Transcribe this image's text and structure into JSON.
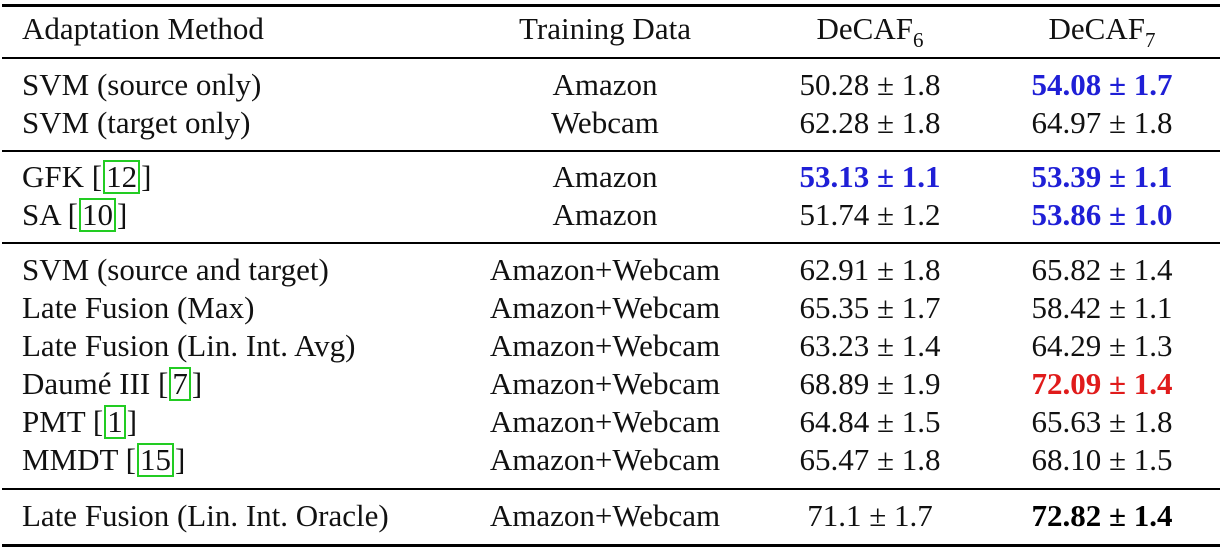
{
  "header": {
    "method": "Adaptation Method",
    "data": "Training Data",
    "decaf6_base": "DeCAF",
    "decaf6_sub": "6",
    "decaf7_base": "DeCAF",
    "decaf7_sub": "7"
  },
  "rows": [
    {
      "method": "SVM (source only)",
      "data": "Amazon",
      "d6": "50.28 ± 1.8",
      "d7": "54.08 ± 1.7"
    },
    {
      "method": "SVM (target only)",
      "data": "Webcam",
      "d6": "62.28 ± 1.8",
      "d7": "64.97 ± 1.8"
    },
    {
      "method": "GFK [",
      "cite": "12",
      "method_end": "]",
      "data": "Amazon",
      "d6": "53.13 ± 1.1",
      "d7": "53.39 ± 1.1"
    },
    {
      "method": "SA [",
      "cite": "10",
      "method_end": "]",
      "data": "Amazon",
      "d6": "51.74 ± 1.2",
      "d7": "53.86 ± 1.0"
    },
    {
      "method": "SVM (source and target)",
      "data": "Amazon+Webcam",
      "d6": "62.91 ± 1.8",
      "d7": "65.82 ± 1.4"
    },
    {
      "method": "Late Fusion (Max)",
      "data": "Amazon+Webcam",
      "d6": "65.35 ± 1.7",
      "d7": "58.42 ± 1.1"
    },
    {
      "method": "Late Fusion (Lin. Int. Avg)",
      "data": "Amazon+Webcam",
      "d6": "63.23 ± 1.4",
      "d7": "64.29 ± 1.3"
    },
    {
      "method": "Daumé III [",
      "cite": "7",
      "method_end": "]",
      "data": "Amazon+Webcam",
      "d6": "68.89 ± 1.9",
      "d7": "72.09 ± 1.4"
    },
    {
      "method": "PMT [",
      "cite": "1",
      "method_end": "]",
      "data": "Amazon+Webcam",
      "d6": "64.84 ± 1.5",
      "d7": "65.63 ± 1.8"
    },
    {
      "method": "MMDT [",
      "cite": "15",
      "method_end": "]",
      "data": "Amazon+Webcam",
      "d6": "65.47 ± 1.8",
      "d7": "68.10 ± 1.5"
    },
    {
      "method": "Late Fusion (Lin. Int. Oracle)",
      "data": "Amazon+Webcam",
      "d6": "71.1 ± 1.7",
      "d7": "72.82 ± 1.4"
    }
  ],
  "colors": {
    "highlight_blue": "#1f1fd6",
    "highlight_red": "#e01b1b",
    "citation_box": "#22cc22"
  }
}
